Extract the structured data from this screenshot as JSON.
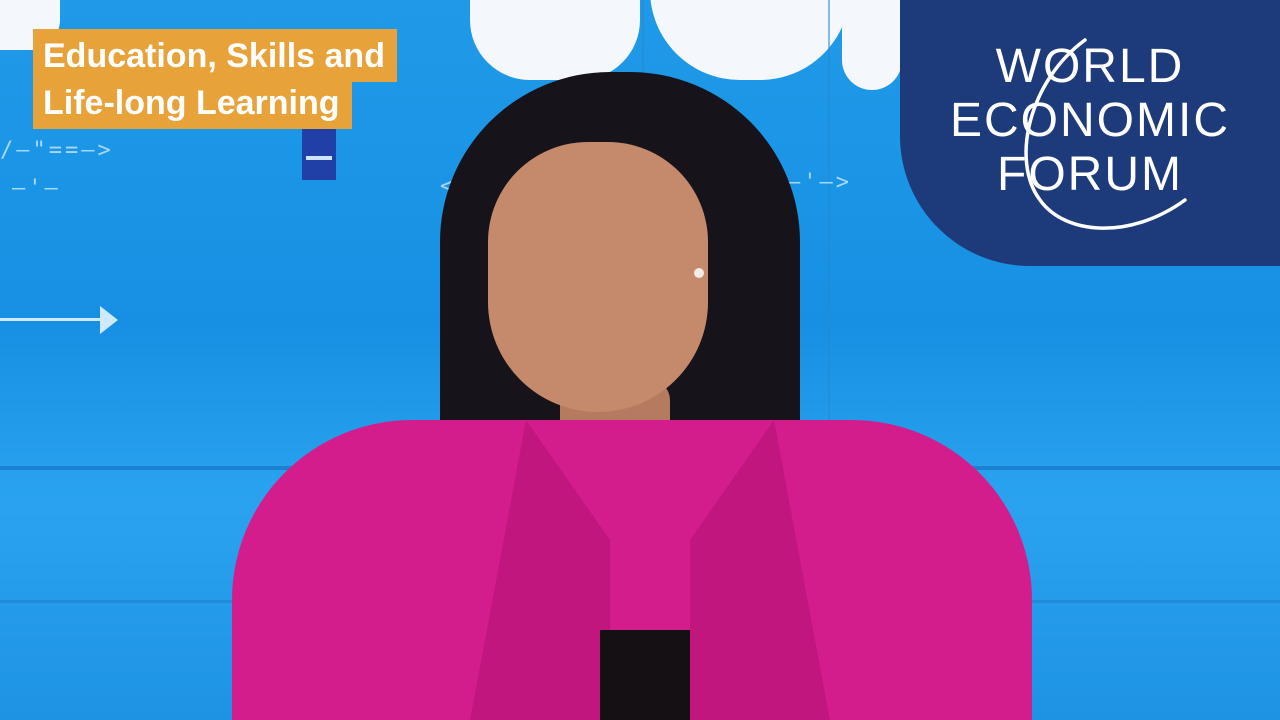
{
  "topic": {
    "line1": "Education, Skills and",
    "line2": "Life-long Learning"
  },
  "logo": {
    "line1": "WORLD",
    "line2": "ECONOMIC",
    "line3": "FORUM"
  },
  "colors": {
    "backdrop": "#1a8fe0",
    "topic_label_bg": "#e8a23a",
    "logo_panel_bg": "#1d3a7a",
    "blazer": "#d41d8c"
  }
}
